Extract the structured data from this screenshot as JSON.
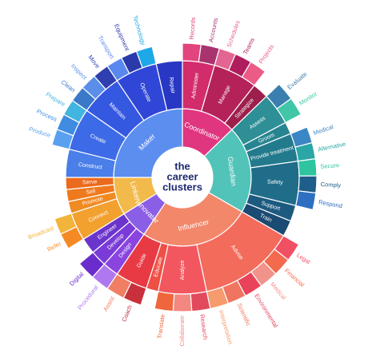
{
  "chart_data": {
    "type": "sunburst",
    "center_title": [
      "the",
      "career",
      "clusters"
    ],
    "clusters": [
      {
        "name": "Coordinator",
        "color": "#e0357f",
        "children": [
          {
            "name": "Administer",
            "size": 16,
            "color": "#d22c6c",
            "leaves": [
              "Records",
              "Accounts"
            ],
            "leaf_colors": [
              "#e2447d",
              "#a8336e"
            ]
          },
          {
            "name": "Manage",
            "size": 22,
            "color": "#b5225a",
            "leaves": [
              "Schedules",
              "Teams",
              "Projects"
            ],
            "leaf_colors": [
              "#e36591",
              "#b01d5e",
              "#ec5a86"
            ]
          },
          {
            "name": "Strategize",
            "size": 8,
            "color": "#9c1f4c",
            "leaves": [],
            "leaf_colors": []
          }
        ]
      },
      {
        "name": "Guardian",
        "color": "#52c3b8",
        "children": [
          {
            "name": "Assess",
            "size": 16,
            "color": "#2e8f96",
            "leaves": [
              "Evaluate",
              "Monitor"
            ],
            "leaf_colors": [
              "#3a7fb0",
              "#41c7a8"
            ]
          },
          {
            "name": "Groom",
            "size": 6,
            "color": "#278591",
            "leaves": [],
            "leaf_colors": []
          },
          {
            "name": "Provide treatment",
            "size": 14,
            "color": "#237a8c",
            "leaves": [
              "Medical",
              "Alternative"
            ],
            "leaf_colors": [
              "#3b86c4",
              "#2ba6a6"
            ]
          },
          {
            "name": "Safety",
            "size": 22,
            "color": "#1f6d89",
            "leaves": [
              "Secure",
              "Comply",
              "Respond"
            ],
            "leaf_colors": [
              "#2ec4a0",
              "#1f5d8a",
              "#2f6fc2"
            ]
          },
          {
            "name": "Support",
            "size": 8,
            "color": "#1d5a80",
            "leaves": [],
            "leaf_colors": []
          },
          {
            "name": "Train",
            "size": 8,
            "color": "#1b4a72",
            "leaves": [],
            "leaf_colors": []
          }
        ]
      },
      {
        "name": "Influencer",
        "color": "#f3876a",
        "children": [
          {
            "name": "Advise",
            "size": 48,
            "color": "#f26b5b",
            "leaves": [
              "Legal",
              "Financial",
              "Medical",
              "Environmental",
              "Scientific",
              "Interpretation"
            ],
            "leaf_colors": [
              "#f14f62",
              "#f36a4e",
              "#f2938b",
              "#e8435a",
              "#f07560",
              "#f59b6e"
            ]
          },
          {
            "name": "Analyze",
            "size": 24,
            "color": "#f25760",
            "leaves": [
              "Research",
              "Collaborate",
              "Translate"
            ],
            "leaf_colors": [
              "#e04a5c",
              "#f28880",
              "#f0663c"
            ]
          },
          {
            "name": "Educate",
            "size": 6,
            "color": "#ef4f45",
            "leaves": [],
            "leaf_colors": []
          },
          {
            "name": "Guide",
            "size": 16,
            "color": "#e83a44",
            "leaves": [
              "Coach",
              "Assist"
            ],
            "leaf_colors": [
              "#c8303c",
              "#f07e62"
            ]
          }
        ]
      },
      {
        "name": "Innovator",
        "color": "#8b5ee6",
        "children": [
          {
            "name": "Design",
            "size": 8,
            "color": "#8a45e0",
            "leaves": [
              "Procedural"
            ],
            "leaf_colors": [
              "#b078f0"
            ]
          },
          {
            "name": "Develop",
            "size": 8,
            "color": "#7a3bd8",
            "leaves": [
              "Digital"
            ],
            "leaf_colors": [
              "#6a2ccc"
            ]
          },
          {
            "name": "Engineer",
            "size": 8,
            "color": "#6b34cc",
            "leaves": [],
            "leaf_colors": []
          }
        ]
      },
      {
        "name": "Linker",
        "color": "#f2ba4a",
        "children": [
          {
            "name": "Connect",
            "size": 14,
            "color": "#f2a02e",
            "leaves": [
              "Refer",
              "Broadcast"
            ],
            "leaf_colors": [
              "#f58a24",
              "#f2b43a"
            ]
          },
          {
            "name": "Promote",
            "size": 6,
            "color": "#f08a22",
            "leaves": [],
            "leaf_colors": []
          },
          {
            "name": "Sell",
            "size": 6,
            "color": "#ef7a1e",
            "leaves": [],
            "leaf_colors": []
          },
          {
            "name": "Serve",
            "size": 6,
            "color": "#ec6a1c",
            "leaves": [],
            "leaf_colors": []
          }
        ]
      },
      {
        "name": "Maker",
        "color": "#5c8ef0",
        "children": [
          {
            "name": "Construct",
            "size": 14,
            "color": "#4a7ee8",
            "leaves": [],
            "leaf_colors": []
          },
          {
            "name": "Create",
            "size": 21,
            "color": "#3d6ae6",
            "leaves": [
              "Produce",
              "Process",
              "Prepare"
            ],
            "leaf_colors": [
              "#5aa0f0",
              "#3f8ce0",
              "#42b4e0"
            ]
          },
          {
            "name": "Maintain",
            "size": 21,
            "color": "#3558e0",
            "leaves": [
              "Clean",
              "Inspect",
              "Move"
            ],
            "leaf_colors": [
              "#3a78c8",
              "#5a8ee8",
              "#2f3fb0"
            ]
          },
          {
            "name": "Operate",
            "size": 21,
            "color": "#2f46d6",
            "leaves": [
              "Transport",
              "Equipment",
              "Technology"
            ],
            "leaf_colors": [
              "#5a88f0",
              "#2a3aaa",
              "#1fa8e8"
            ]
          },
          {
            "name": "Repair",
            "size": 13,
            "color": "#2838c4",
            "leaves": [],
            "leaf_colors": []
          }
        ]
      }
    ]
  }
}
